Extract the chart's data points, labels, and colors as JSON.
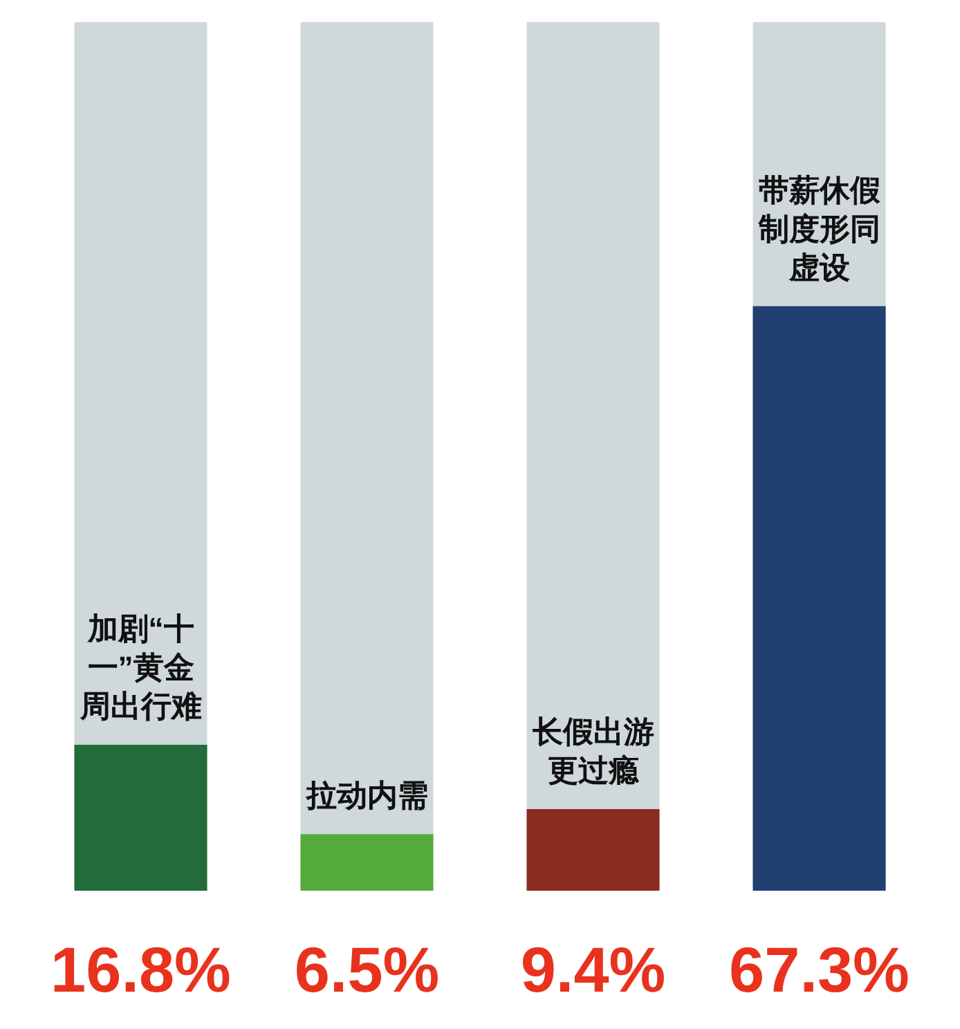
{
  "chart_data": {
    "type": "bar",
    "categories": [
      "加剧“十一”黄金周出行难",
      "拉动内需",
      "长假出游更过瘾",
      "带薪休假制度形同虚设"
    ],
    "values": [
      16.8,
      6.5,
      9.4,
      67.3
    ],
    "value_labels": [
      "16.8%",
      "6.5%",
      "9.4%",
      "67.3%"
    ],
    "colors": [
      "#236b3a",
      "#55ab3a",
      "#8a2c1e",
      "#223f72"
    ],
    "tick_labels": "x"
  }
}
